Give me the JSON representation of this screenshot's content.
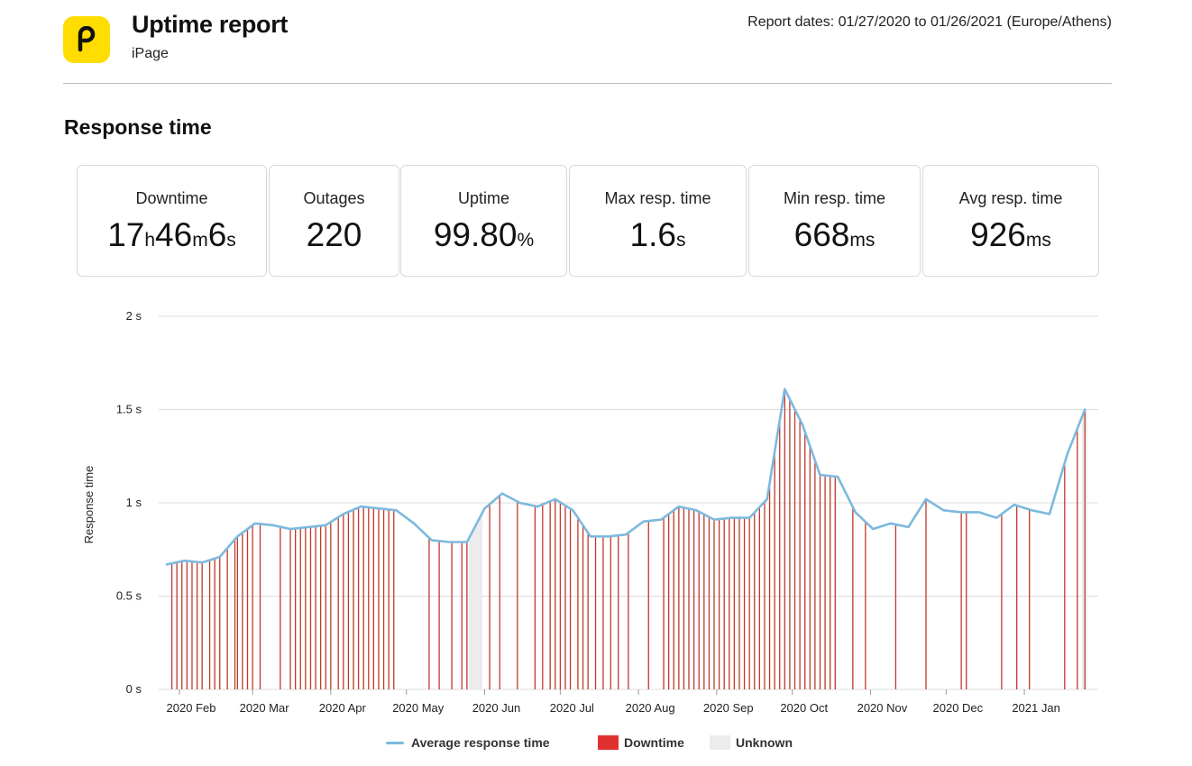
{
  "header": {
    "title": "Uptime report",
    "subtitle": "iPage",
    "report_dates": "Report dates: 01/27/2020 to 01/26/2021 (Europe/Athens)",
    "logo_letter": "p",
    "logo_color": "#FFDD00"
  },
  "section": {
    "title": "Response time"
  },
  "stats": [
    {
      "label": "Downtime",
      "parts": [
        {
          "t": "17",
          "u": false
        },
        {
          "t": "h",
          "u": true
        },
        {
          "t": "46",
          "u": false
        },
        {
          "t": "m",
          "u": true
        },
        {
          "t": "6",
          "u": false
        },
        {
          "t": "s",
          "u": true
        }
      ]
    },
    {
      "label": "Outages",
      "parts": [
        {
          "t": "220",
          "u": false
        }
      ]
    },
    {
      "label": "Uptime",
      "parts": [
        {
          "t": "99.80",
          "u": false
        },
        {
          "t": "%",
          "u": true
        }
      ]
    },
    {
      "label": "Max resp. time",
      "parts": [
        {
          "t": "1.6",
          "u": false
        },
        {
          "t": "s",
          "u": true
        }
      ]
    },
    {
      "label": "Min resp. time",
      "parts": [
        {
          "t": "668",
          "u": false
        },
        {
          "t": "ms",
          "u": true
        }
      ]
    },
    {
      "label": "Avg resp. time",
      "parts": [
        {
          "t": "926",
          "u": false
        },
        {
          "t": "ms",
          "u": true
        }
      ]
    }
  ],
  "colors": {
    "line": "#7db9de",
    "downtime": "#e03131",
    "downtime_bar": "#c0392b",
    "unknown": "#ececec",
    "grid": "#dcdcdc"
  },
  "legend": {
    "line_label": "Average response time",
    "downtime_label": "Downtime",
    "unknown_label": "Unknown"
  },
  "chart_data": {
    "type": "line",
    "title": "Response time",
    "ylabel": "Response time",
    "xlabel": "",
    "ylim": [
      0,
      2
    ],
    "yticks": [
      {
        "v": 0,
        "label": "0 s"
      },
      {
        "v": 0.5,
        "label": "0.5 s"
      },
      {
        "v": 1,
        "label": "1 s"
      },
      {
        "v": 1.5,
        "label": "1.5 s"
      },
      {
        "v": 2,
        "label": "2 s"
      }
    ],
    "xlim": [
      0,
      365
    ],
    "xticks": [
      {
        "day": 5,
        "label": "2020 Feb"
      },
      {
        "day": 34,
        "label": "2020 Mar"
      },
      {
        "day": 65,
        "label": "2020 Apr"
      },
      {
        "day": 95,
        "label": "2020 May"
      },
      {
        "day": 126,
        "label": "2020 Jun"
      },
      {
        "day": 156,
        "label": "2020 Jul"
      },
      {
        "day": 187,
        "label": "2020 Aug"
      },
      {
        "day": 218,
        "label": "2020 Sep"
      },
      {
        "day": 248,
        "label": "2020 Oct"
      },
      {
        "day": 279,
        "label": "2020 Nov"
      },
      {
        "day": 309,
        "label": "2020 Dec"
      },
      {
        "day": 340,
        "label": "2021 Jan"
      }
    ],
    "series": [
      {
        "name": "Average response time",
        "points": [
          [
            0,
            0.67
          ],
          [
            7,
            0.69
          ],
          [
            14,
            0.68
          ],
          [
            21,
            0.71
          ],
          [
            28,
            0.82
          ],
          [
            35,
            0.89
          ],
          [
            42,
            0.88
          ],
          [
            49,
            0.86
          ],
          [
            56,
            0.87
          ],
          [
            63,
            0.88
          ],
          [
            70,
            0.94
          ],
          [
            77,
            0.98
          ],
          [
            84,
            0.97
          ],
          [
            91,
            0.96
          ],
          [
            98,
            0.89
          ],
          [
            105,
            0.8
          ],
          [
            112,
            0.79
          ],
          [
            119,
            0.79
          ],
          [
            126,
            0.97
          ],
          [
            133,
            1.05
          ],
          [
            140,
            1.0
          ],
          [
            147,
            0.98
          ],
          [
            154,
            1.02
          ],
          [
            161,
            0.96
          ],
          [
            168,
            0.82
          ],
          [
            175,
            0.82
          ],
          [
            182,
            0.83
          ],
          [
            189,
            0.9
          ],
          [
            196,
            0.91
          ],
          [
            203,
            0.98
          ],
          [
            210,
            0.96
          ],
          [
            217,
            0.91
          ],
          [
            224,
            0.92
          ],
          [
            231,
            0.92
          ],
          [
            238,
            1.02
          ],
          [
            245,
            1.61
          ],
          [
            252,
            1.42
          ],
          [
            259,
            1.15
          ],
          [
            266,
            1.14
          ],
          [
            273,
            0.95
          ],
          [
            280,
            0.86
          ],
          [
            287,
            0.89
          ],
          [
            294,
            0.87
          ],
          [
            301,
            1.02
          ],
          [
            308,
            0.96
          ],
          [
            315,
            0.95
          ],
          [
            322,
            0.95
          ],
          [
            329,
            0.92
          ],
          [
            336,
            0.99
          ],
          [
            343,
            0.96
          ],
          [
            350,
            0.94
          ],
          [
            357,
            1.26
          ],
          [
            364,
            1.5
          ]
        ]
      }
    ],
    "downtime_days": [
      2,
      4,
      6,
      8,
      10,
      12,
      14,
      17,
      19,
      21,
      24,
      27,
      28,
      30,
      32,
      34,
      37,
      45,
      49,
      51,
      53,
      55,
      57,
      59,
      61,
      63,
      65,
      68,
      70,
      72,
      74,
      76,
      78,
      80,
      82,
      84,
      86,
      88,
      90,
      104,
      108,
      113,
      117,
      119,
      128,
      132,
      139,
      146,
      149,
      152,
      154,
      156,
      158,
      160,
      163,
      165,
      167,
      170,
      173,
      176,
      179,
      183,
      191,
      197,
      199,
      201,
      203,
      205,
      207,
      209,
      211,
      213,
      215,
      217,
      219,
      221,
      223,
      225,
      227,
      229,
      231,
      233,
      235,
      237,
      239,
      241,
      243,
      245,
      247,
      249,
      251,
      253,
      255,
      257,
      259,
      261,
      263,
      265,
      272,
      277,
      289,
      301,
      315,
      317,
      331,
      337,
      342,
      356,
      361,
      364
    ],
    "unknown_ranges": [
      [
        120,
        125
      ],
      [
        363,
        365
      ]
    ]
  }
}
